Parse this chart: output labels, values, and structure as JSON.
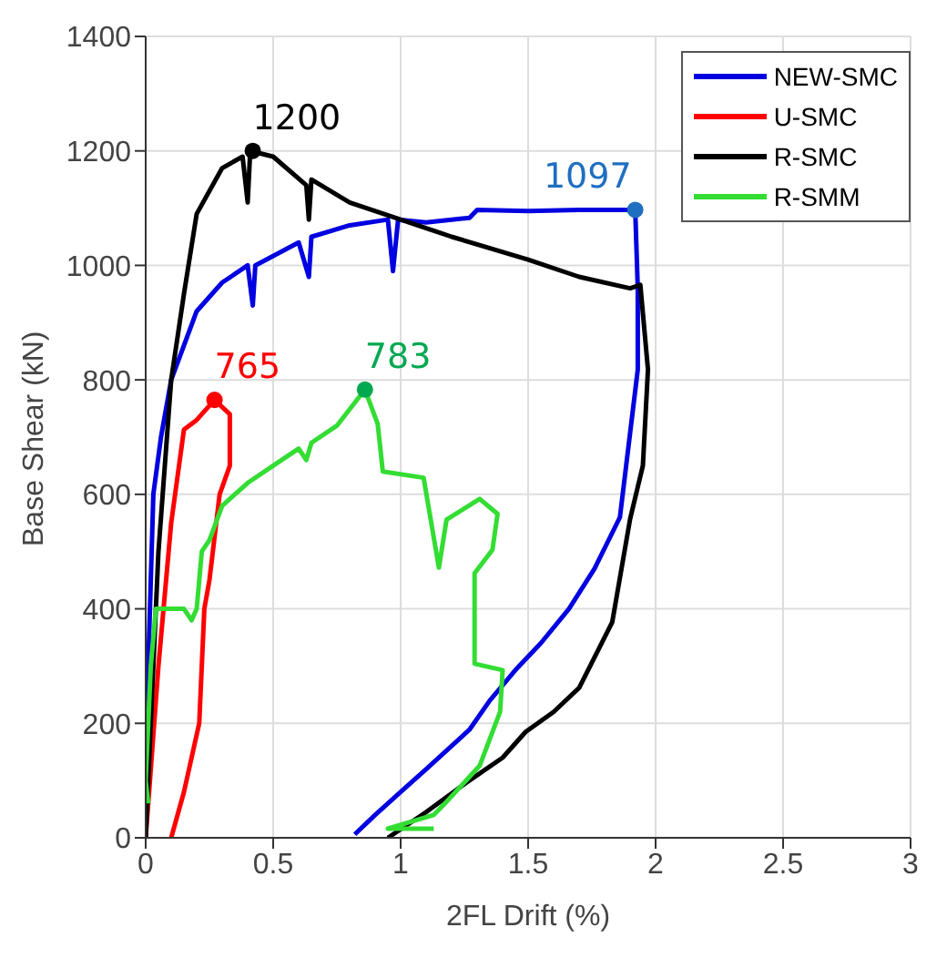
{
  "chart_data": {
    "type": "line",
    "xlabel": "2FL Drift (%)",
    "ylabel": "Base Shear (kN)",
    "xlim": [
      0,
      3
    ],
    "xticks": [
      0,
      0.5,
      1,
      1.5,
      2,
      2.5,
      3
    ],
    "ylim": [
      0,
      1400
    ],
    "yticks": [
      0,
      200,
      400,
      600,
      800,
      1000,
      1200,
      1400
    ],
    "grid": true,
    "legend": "top right",
    "marker": "none",
    "line_style": "solid",
    "series": [
      {
        "name": "NEW-SMC",
        "color": "#0000e0",
        "x": [
          0,
          0.01,
          0.03,
          0.06,
          0.1,
          0.15,
          0.2,
          0.3,
          0.4,
          0.42,
          0.43,
          0.6,
          0.64,
          0.65,
          0.8,
          0.95,
          0.97,
          0.99,
          1.1,
          1.2,
          1.27,
          1.3,
          1.5,
          1.7,
          1.92,
          1.93,
          1.93,
          1.86,
          1.76,
          1.66,
          1.55,
          1.45,
          1.35,
          1.27,
          1.1,
          1.0,
          0.9,
          0.82
        ],
        "values": [
          0,
          300,
          600,
          700,
          800,
          860,
          920,
          970,
          1000,
          930,
          1000,
          1040,
          980,
          1050,
          1070,
          1080,
          990,
          1080,
          1075,
          1080,
          1083,
          1097,
          1095,
          1097,
          1097,
          960,
          818,
          560,
          470,
          400,
          340,
          293,
          240,
          189,
          120,
          80,
          40,
          6
        ]
      },
      {
        "name": "U-SMC",
        "color": "#ff0000",
        "x": [
          0,
          0.05,
          0.1,
          0.15,
          0.2,
          0.27,
          0.33,
          0.33,
          0.29,
          0.25,
          0.23,
          0.21,
          0.15,
          0.1
        ],
        "values": [
          0,
          300,
          550,
          713,
          730,
          765,
          740,
          650,
          600,
          450,
          400,
          200,
          80,
          0
        ]
      },
      {
        "name": "R-SMC",
        "color": "#000000",
        "x": [
          0,
          0.02,
          0.05,
          0.1,
          0.15,
          0.2,
          0.3,
          0.38,
          0.4,
          0.41,
          0.5,
          0.63,
          0.64,
          0.65,
          0.8,
          1.0,
          1.2,
          1.5,
          1.7,
          1.9,
          1.94,
          1.97,
          1.95,
          1.9,
          1.83,
          1.7,
          1.6,
          1.49,
          1.4,
          1.25,
          1.1,
          0.95
        ],
        "values": [
          0,
          200,
          500,
          800,
          950,
          1090,
          1170,
          1190,
          1110,
          1200,
          1190,
          1140,
          1080,
          1150,
          1110,
          1080,
          1050,
          1010,
          980,
          960,
          966,
          818,
          650,
          557,
          377,
          262,
          220,
          185,
          140,
          94,
          45,
          0
        ]
      },
      {
        "name": "R-SMM",
        "color": "#33dd33",
        "x": [
          0.01,
          0,
          0.02,
          0.04,
          0.15,
          0.18,
          0.2,
          0.22,
          0.25,
          0.3,
          0.4,
          0.5,
          0.6,
          0.63,
          0.65,
          0.75,
          0.86,
          0.91,
          0.93,
          1.09,
          1.15,
          1.18,
          1.31,
          1.38,
          1.36,
          1.29,
          1.29,
          1.4,
          1.39,
          1.31,
          1.18,
          1.13,
          0.95,
          1.13
        ],
        "values": [
          60,
          100,
          300,
          400,
          400,
          380,
          400,
          500,
          520,
          580,
          620,
          650,
          680,
          660,
          690,
          720,
          783,
          723,
          640,
          629,
          472,
          556,
          592,
          566,
          503,
          462,
          304,
          293,
          220,
          126,
          63,
          40,
          16,
          16
        ]
      },
      {
        "type": "scatter",
        "marker": "circle",
        "color": "#000000",
        "x": [
          0.42
        ],
        "values": [
          1200
        ]
      },
      {
        "type": "scatter",
        "marker": "circle",
        "color": "#ff0000",
        "x": [
          0.27
        ],
        "values": [
          765
        ]
      },
      {
        "type": "scatter",
        "marker": "circle",
        "color": "#00a850",
        "x": [
          0.86
        ],
        "values": [
          783
        ]
      },
      {
        "type": "scatter",
        "marker": "circle",
        "color": "#1f6fc0",
        "x": [
          1.92
        ],
        "values": [
          1097
        ]
      }
    ],
    "annotations": [
      {
        "text": "1200",
        "x": 0.42,
        "y": 1200
      },
      {
        "text": "765",
        "x": 0.27,
        "y": 765
      },
      {
        "text": "783",
        "x": 0.86,
        "y": 783
      },
      {
        "text": "1097",
        "x": 1.92,
        "y": 1097
      }
    ]
  }
}
